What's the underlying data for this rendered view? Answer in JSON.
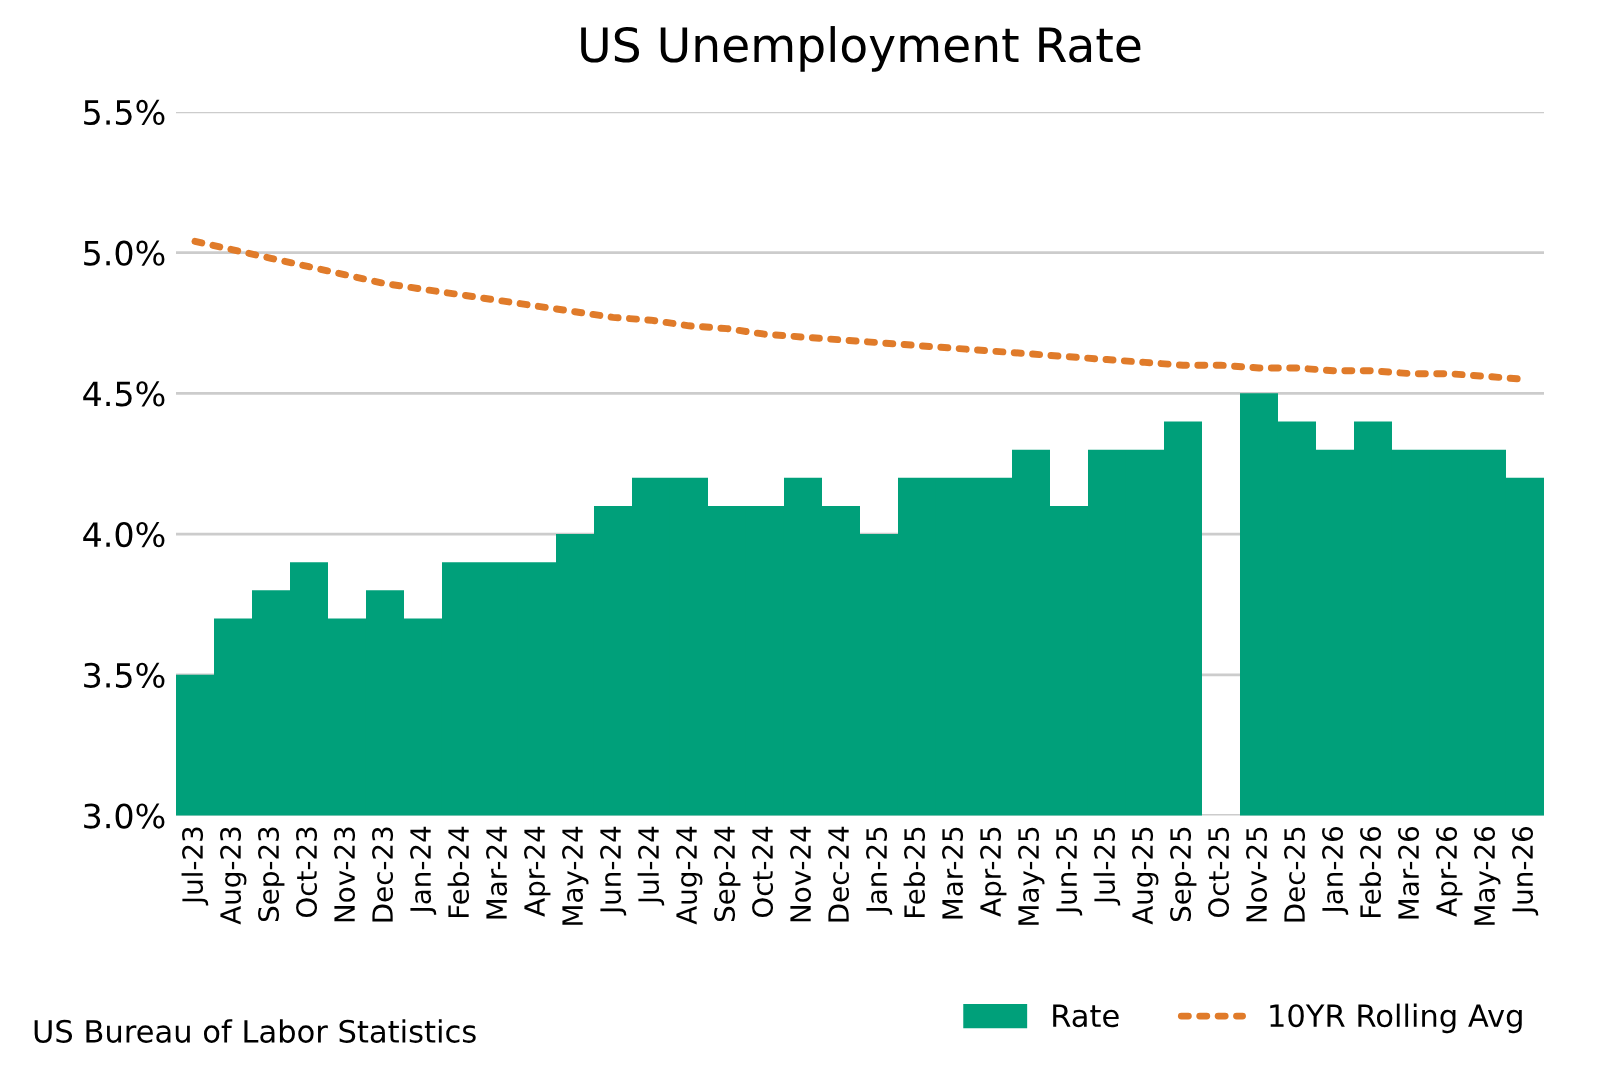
{
  "chart_data": {
    "type": "bar",
    "title": "US Unemployment Rate",
    "categories": [
      "Jul-23",
      "Aug-23",
      "Sep-23",
      "Oct-23",
      "Nov-23",
      "Dec-23",
      "Jan-24",
      "Feb-24",
      "Mar-24",
      "Apr-24",
      "May-24",
      "Jun-24",
      "Jul-24",
      "Aug-24",
      "Sep-24",
      "Oct-24",
      "Nov-24",
      "Dec-24",
      "Jan-25",
      "Feb-25",
      "Mar-25",
      "Apr-25",
      "May-25",
      "Jun-25",
      "Jul-25",
      "Aug-25",
      "Sep-25",
      "Oct-25",
      "Nov-25",
      "Dec-25",
      "Jan-26",
      "Feb-26",
      "Mar-26",
      "Apr-26",
      "May-26",
      "Jun-26"
    ],
    "series": [
      {
        "name": "Rate",
        "color": "#00a07a",
        "values": [
          3.5,
          3.7,
          3.8,
          3.9,
          3.7,
          3.8,
          3.7,
          3.9,
          3.9,
          3.9,
          4.0,
          4.1,
          4.2,
          4.2,
          4.1,
          4.1,
          4.2,
          4.1,
          4.0,
          4.2,
          4.2,
          4.2,
          4.3,
          4.1,
          4.3,
          4.3,
          4.4,
          null,
          4.5,
          4.4,
          4.3,
          4.4,
          4.3,
          4.3,
          4.3,
          4.2
        ]
      },
      {
        "name": "10YR Rolling Avg",
        "type": "line",
        "color": "#e07b2a",
        "line_style": "dotted",
        "values": [
          5.04,
          5.01,
          4.98,
          4.95,
          4.92,
          4.89,
          4.87,
          4.85,
          4.83,
          4.81,
          4.79,
          4.77,
          4.76,
          4.74,
          4.73,
          4.71,
          4.7,
          4.69,
          4.68,
          4.67,
          4.66,
          4.65,
          4.64,
          4.63,
          4.62,
          4.61,
          4.6,
          4.6,
          4.59,
          4.59,
          4.58,
          4.58,
          4.57,
          4.57,
          4.56,
          4.55
        ]
      }
    ],
    "ylim": [
      3.0,
      5.5
    ],
    "yticks": [
      {
        "value": 3.0,
        "label": "3.0%"
      },
      {
        "value": 3.5,
        "label": "3.5%"
      },
      {
        "value": 4.0,
        "label": "4.0%"
      },
      {
        "value": 4.5,
        "label": "4.5%"
      },
      {
        "value": 5.0,
        "label": "5.0%"
      },
      {
        "value": 5.5,
        "label": "5.5%"
      }
    ],
    "grid": "y",
    "legend": "bottom right",
    "annotations": [
      "US Bureau of Labor Statistics"
    ]
  }
}
